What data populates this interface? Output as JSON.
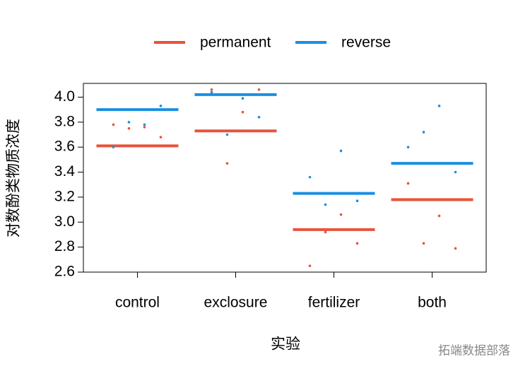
{
  "chart_data": {
    "type": "dotmean",
    "xlabel": "实验",
    "ylabel": "对数酚类物质浓度",
    "watermark": "拓端数据部落",
    "categories": [
      "control",
      "exclosure",
      "fertilizer",
      "both"
    ],
    "ylim": [
      2.6,
      4.11
    ],
    "yticks": [
      {
        "value": 2.6,
        "label": "2.6"
      },
      2.8,
      {
        "value": 3.0,
        "label": "3.0"
      },
      3.2,
      3.4,
      3.6,
      3.8,
      {
        "value": 4.0,
        "label": "4.0"
      }
    ],
    "legend": "top",
    "series": [
      {
        "name": "permanent",
        "color": "#e8533a",
        "values": [
          3.61,
          3.73,
          2.94,
          3.18
        ],
        "points": [
          [
            3.78,
            3.75,
            3.76,
            3.68
          ],
          [
            4.06,
            3.47,
            3.88,
            4.06
          ],
          [
            2.65,
            2.92,
            3.06,
            2.83
          ],
          [
            3.31,
            2.83,
            3.05,
            2.79
          ]
        ]
      },
      {
        "name": "reverse",
        "color": "#1a8fe0",
        "values": [
          3.9,
          4.02,
          3.23,
          3.47
        ],
        "points": [
          [
            3.6,
            3.8,
            3.78,
            3.93
          ],
          [
            4.04,
            3.7,
            3.99,
            3.84
          ],
          [
            3.36,
            3.14,
            3.57,
            3.17
          ],
          [
            3.6,
            3.72,
            3.93,
            3.4
          ]
        ]
      }
    ]
  }
}
